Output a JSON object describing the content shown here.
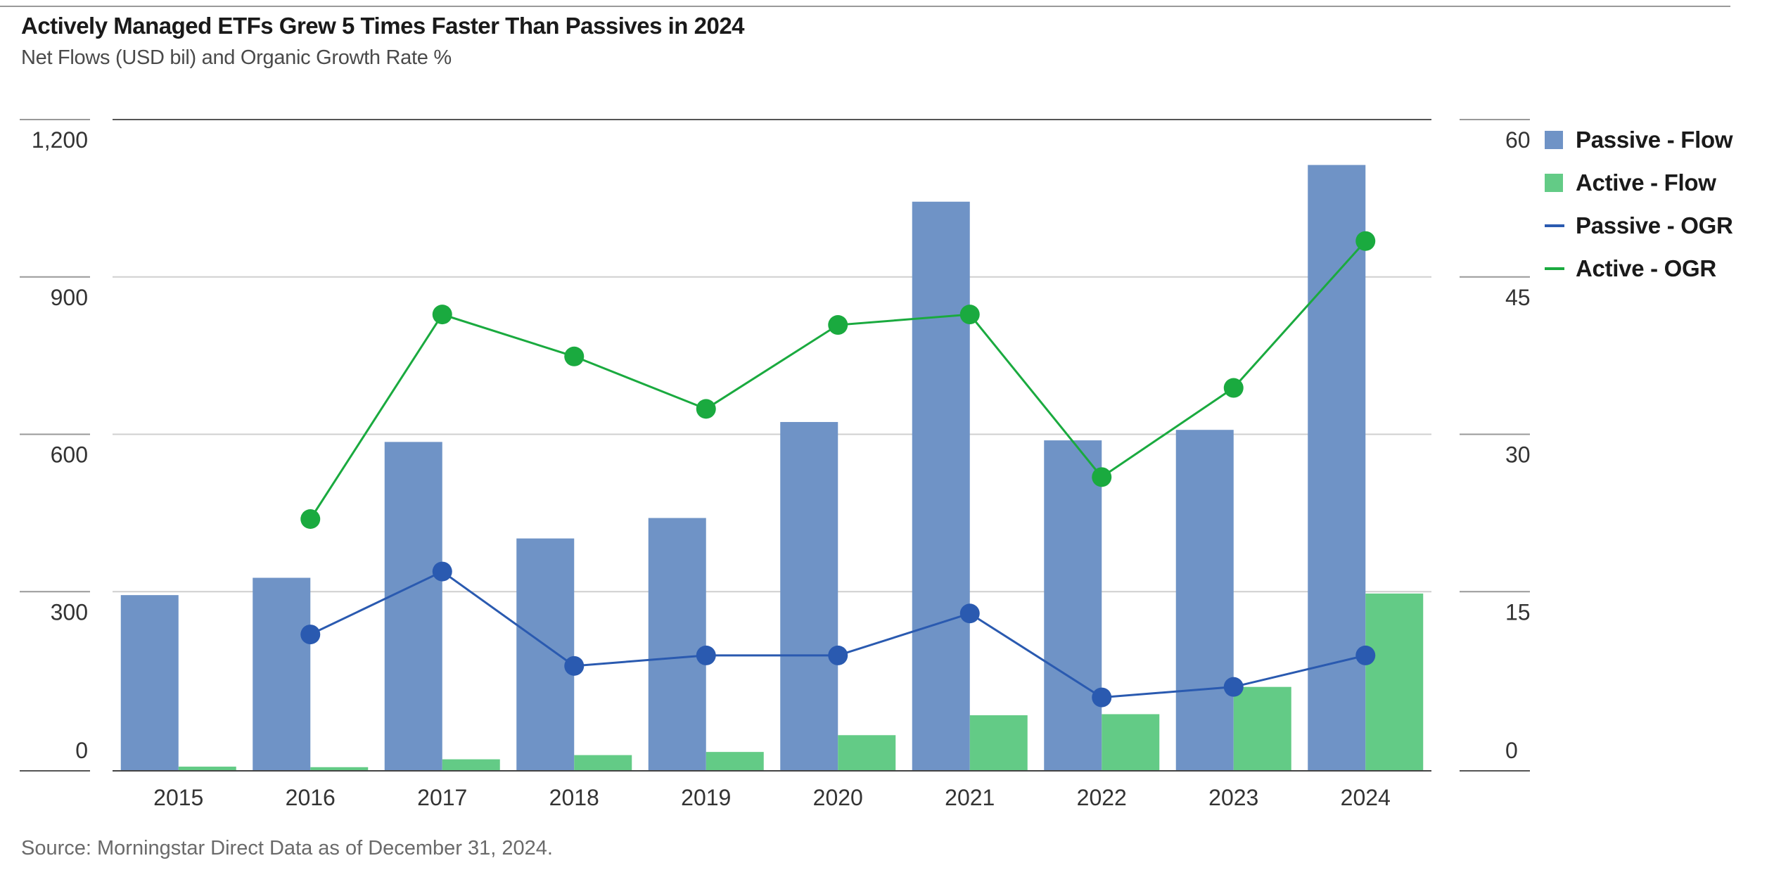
{
  "header": {
    "title": "Actively Managed ETFs Grew 5 Times Faster Than Passives in 2024",
    "subtitle": "Net Flows (USD bil) and Organic Growth Rate %"
  },
  "footer": {
    "source": "Source: Morningstar Direct  Data as of December 31, 2024."
  },
  "legend": [
    {
      "label": "Passive - Flow",
      "kind": "bar",
      "color": "#6f93c6"
    },
    {
      "label": "Active - Flow",
      "kind": "bar",
      "color": "#63cb86"
    },
    {
      "label": "Passive - OGR",
      "kind": "line",
      "color": "#2a5ab0"
    },
    {
      "label": "Active - OGR",
      "kind": "line",
      "color": "#1aaa3f"
    }
  ],
  "chart_data": {
    "type": "bar",
    "categories": [
      "2015",
      "2016",
      "2017",
      "2018",
      "2019",
      "2020",
      "2021",
      "2022",
      "2023",
      "2024"
    ],
    "y_left": {
      "ticks": [
        "0",
        "300",
        "600",
        "900",
        "1,200"
      ],
      "range": [
        0,
        1200
      ]
    },
    "y_right": {
      "ticks": [
        "0",
        "15",
        "30",
        "45",
        "60"
      ],
      "range": [
        0,
        60
      ]
    },
    "grid": true,
    "legend_position": "right",
    "series": [
      {
        "name": "Passive - Flow",
        "type": "bar",
        "axis": "left",
        "color": "#6f93c6",
        "values": [
          335,
          368,
          627,
          443,
          482,
          665,
          1085,
          630,
          650,
          1155
        ]
      },
      {
        "name": "Active - Flow",
        "type": "bar",
        "axis": "left",
        "color": "#63cb86",
        "values": [
          8,
          7,
          22,
          30,
          36,
          68,
          106,
          108,
          160,
          338
        ]
      },
      {
        "name": "Passive - OGR",
        "type": "line",
        "axis": "right",
        "color": "#2a5ab0",
        "values": [
          null,
          13.0,
          19.0,
          10.0,
          11.0,
          11.0,
          15.0,
          7.0,
          8.0,
          11.0
        ]
      },
      {
        "name": "Active - OGR",
        "type": "line",
        "axis": "right",
        "color": "#1aaa3f",
        "values": [
          null,
          24.0,
          43.5,
          39.5,
          34.5,
          42.5,
          43.5,
          28.0,
          36.5,
          50.5
        ]
      }
    ]
  }
}
